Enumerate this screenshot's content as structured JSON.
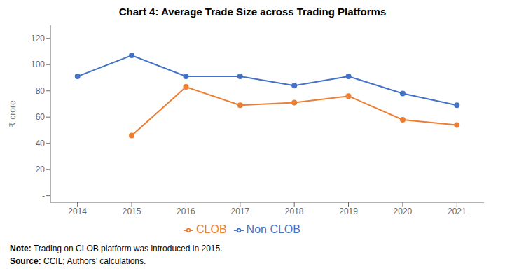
{
  "chart_data": {
    "type": "line",
    "title": "Chart 4: Average Trade Size across Trading Platforms",
    "x": [
      2014,
      2015,
      2016,
      2017,
      2018,
      2019,
      2020,
      2021
    ],
    "series": [
      {
        "name": "Non CLOB",
        "color": "#4472C4",
        "values": [
          91,
          107,
          91,
          91,
          84,
          91,
          78,
          69
        ],
        "marker": "circle"
      },
      {
        "name": "CLOB",
        "color": "#ED7D31",
        "values": [
          null,
          46,
          83,
          69,
          71,
          76,
          58,
          54
        ],
        "marker": "circle"
      }
    ],
    "xlim": [
      2013.5,
      2021.5
    ],
    "xticks": [
      2014,
      2015,
      2016,
      2017,
      2018,
      2019,
      2020,
      2021
    ],
    "ylim": [
      -5,
      130
    ],
    "yticks": [
      {
        "value": 0,
        "label": "-"
      },
      20,
      40,
      60,
      80,
      100,
      120
    ],
    "ylabel": "₹ crore",
    "grid": false,
    "legend": "bottom",
    "annotations": [
      {
        "label": "Note:",
        "text": "Trading on CLOB platform was introduced in 2015."
      },
      {
        "label": "Source:",
        "text": "CCIL; Authors’ calculations."
      }
    ]
  }
}
